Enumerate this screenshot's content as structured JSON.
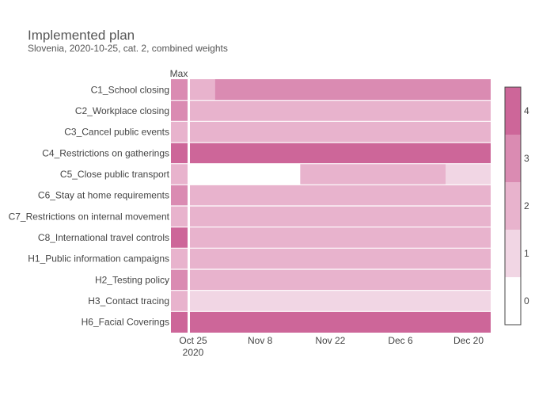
{
  "chart_data": {
    "type": "heatmap",
    "title": "Implemented plan",
    "subtitle": "Slovenia, 2020-10-25, cat. 2, combined weights",
    "max_column_label": "Max",
    "x_ticks": [
      {
        "date": "2020-10-25",
        "label": "Oct 25",
        "sublabel": "2020"
      },
      {
        "date": "2020-11-08",
        "label": "Nov 8",
        "sublabel": ""
      },
      {
        "date": "2020-11-22",
        "label": "Nov 22",
        "sublabel": ""
      },
      {
        "date": "2020-12-06",
        "label": "Dec 6",
        "sublabel": ""
      },
      {
        "date": "2020-12-20",
        "label": "Dec 20",
        "sublabel": ""
      }
    ],
    "x_range": [
      "2020-10-25",
      "2020-12-24"
    ],
    "rows": [
      {
        "label": "C1_School closing",
        "max": 3,
        "segments": [
          {
            "start": "2020-10-25",
            "end": "2020-10-30",
            "value": 2
          },
          {
            "start": "2020-10-30",
            "end": "2020-12-24",
            "value": 3
          }
        ]
      },
      {
        "label": "C2_Workplace closing",
        "max": 3,
        "segments": [
          {
            "start": "2020-10-25",
            "end": "2020-12-24",
            "value": 2
          }
        ]
      },
      {
        "label": "C3_Cancel public events",
        "max": 2,
        "segments": [
          {
            "start": "2020-10-25",
            "end": "2020-12-24",
            "value": 2
          }
        ]
      },
      {
        "label": "C4_Restrictions on gatherings",
        "max": 4,
        "segments": [
          {
            "start": "2020-10-25",
            "end": "2020-12-24",
            "value": 4
          }
        ]
      },
      {
        "label": "C5_Close public transport",
        "max": 2,
        "segments": [
          {
            "start": "2020-10-25",
            "end": "2020-11-16",
            "value": 0
          },
          {
            "start": "2020-11-16",
            "end": "2020-12-15",
            "value": 2
          },
          {
            "start": "2020-12-15",
            "end": "2020-12-24",
            "value": 1
          }
        ]
      },
      {
        "label": "C6_Stay at home requirements",
        "max": 3,
        "segments": [
          {
            "start": "2020-10-25",
            "end": "2020-12-24",
            "value": 2
          }
        ]
      },
      {
        "label": "C7_Restrictions on internal movement",
        "max": 2,
        "segments": [
          {
            "start": "2020-10-25",
            "end": "2020-12-24",
            "value": 2
          }
        ]
      },
      {
        "label": "C8_International travel controls",
        "max": 4,
        "segments": [
          {
            "start": "2020-10-25",
            "end": "2020-12-24",
            "value": 2
          }
        ]
      },
      {
        "label": "H1_Public information campaigns",
        "max": 2,
        "segments": [
          {
            "start": "2020-10-25",
            "end": "2020-12-24",
            "value": 2
          }
        ]
      },
      {
        "label": "H2_Testing policy",
        "max": 3,
        "segments": [
          {
            "start": "2020-10-25",
            "end": "2020-12-24",
            "value": 2
          }
        ]
      },
      {
        "label": "H3_Contact tracing",
        "max": 2,
        "segments": [
          {
            "start": "2020-10-25",
            "end": "2020-12-24",
            "value": 1
          }
        ]
      },
      {
        "label": "H6_Facial Coverings",
        "max": 4,
        "segments": [
          {
            "start": "2020-10-25",
            "end": "2020-12-24",
            "value": 4
          }
        ]
      }
    ],
    "colorscale": {
      "min": 0,
      "max": 4,
      "ticks": [
        "0",
        "1",
        "2",
        "3",
        "4"
      ],
      "colors": [
        "#ffffff",
        "#f1d6e4",
        "#e8b3cd",
        "#da8bb2",
        "#cd6699"
      ],
      "outline": "#444444"
    },
    "separator_color": "#ffffff"
  }
}
